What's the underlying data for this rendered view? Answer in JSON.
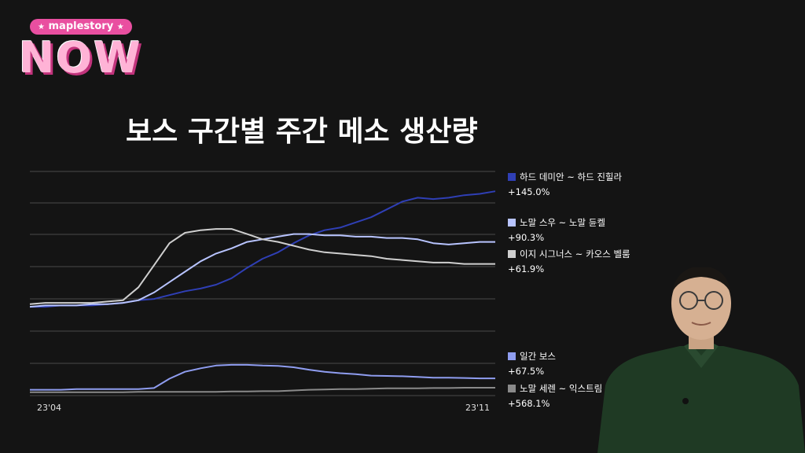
{
  "brand": {
    "pill_text": "maplestory",
    "star": "★",
    "word": "NOW"
  },
  "chart_data": {
    "type": "line",
    "title": "보스 구간별 주간 메소 생산량",
    "x_ticks": [
      "23'04",
      "23'11"
    ],
    "panels": [
      {
        "name": "upper",
        "ylim": [
          0,
          100
        ],
        "series": [
          {
            "name": "하드 데미안 ~ 하드 진힐라",
            "change": "+145.0%",
            "color": "#2f3fb5",
            "values": [
              3,
              3,
              4,
              4,
              4,
              5,
              6,
              8,
              9,
              12,
              15,
              17,
              20,
              25,
              33,
              40,
              45,
              52,
              58,
              62,
              64,
              68,
              72,
              78,
              84,
              87,
              86,
              87,
              89,
              90,
              92
            ]
          },
          {
            "name": "노말 스우 ~ 노말 듄켈",
            "change": "+90.3%",
            "color": "#b8c4ff",
            "values": [
              3,
              4,
              4,
              4,
              5,
              5,
              6,
              8,
              14,
              22,
              30,
              38,
              44,
              48,
              53,
              55,
              57,
              59,
              59,
              58,
              58,
              57,
              57,
              56,
              56,
              55,
              52,
              51,
              52,
              53,
              53
            ]
          },
          {
            "name": "이지 시그너스 ~ 카오스 벨룸",
            "change": "+61.9%",
            "color": "#cfcfcf",
            "values": [
              5,
              6,
              6,
              6,
              6,
              7,
              8,
              18,
              35,
              52,
              60,
              62,
              63,
              63,
              59,
              55,
              53,
              50,
              47,
              45,
              44,
              43,
              42,
              40,
              39,
              38,
              37,
              37,
              36,
              36,
              36
            ]
          }
        ]
      },
      {
        "name": "lower",
        "ylim": [
          0,
          100
        ],
        "series": [
          {
            "name": "일간 보스",
            "change": "+67.5%",
            "color": "#8f9df0",
            "values": [
              10,
              10,
              10,
              12,
              12,
              12,
              12,
              12,
              15,
              42,
              62,
              72,
              80,
              82,
              82,
              80,
              79,
              75,
              68,
              62,
              58,
              55,
              51,
              50,
              49,
              47,
              45,
              45,
              44,
              43,
              43
            ]
          },
          {
            "name": "노말 세렌 ~ 익스트림 카",
            "change": "+568.1%",
            "color": "#8a8a8a",
            "values": [
              3,
              3,
              3,
              3,
              3,
              3,
              3,
              4,
              4,
              4,
              4,
              4,
              4,
              5,
              5,
              6,
              6,
              8,
              10,
              11,
              12,
              12,
              13,
              14,
              14,
              14,
              15,
              15,
              16,
              16,
              16
            ]
          }
        ]
      }
    ]
  }
}
